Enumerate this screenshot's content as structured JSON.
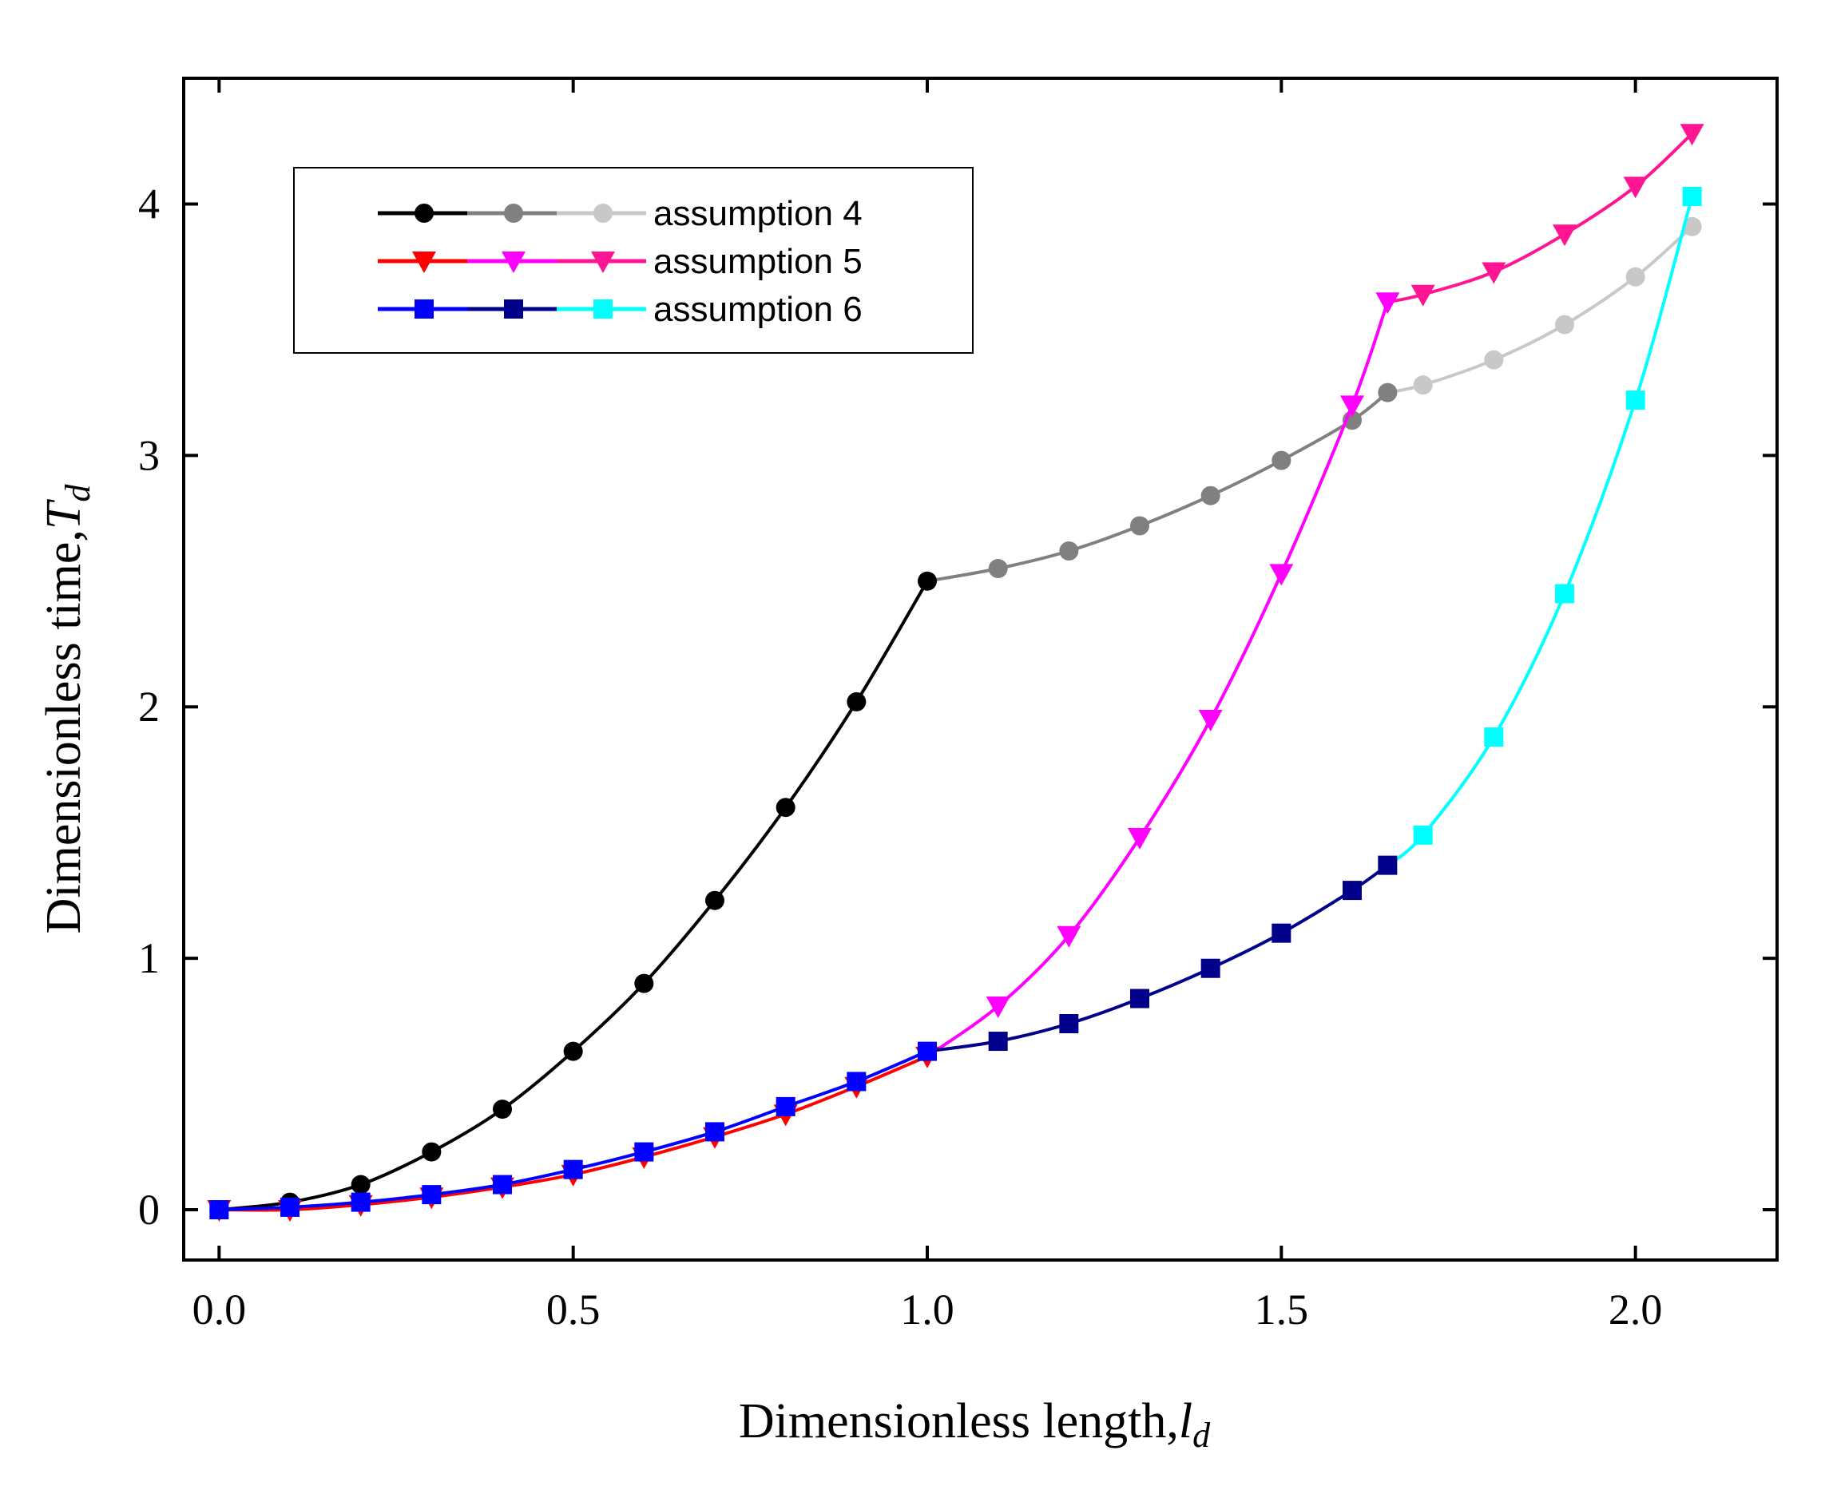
{
  "chart_data": {
    "type": "line",
    "xlabel": "Dimensionless length,",
    "xlabel_var": "l",
    "xlabel_sub": "d",
    "ylabel": "Dimensionless time,",
    "ylabel_var": "T",
    "ylabel_sub": "d",
    "xlim": [
      -0.05,
      2.2
    ],
    "ylim": [
      -0.2,
      4.5
    ],
    "xticks": [
      0.0,
      0.5,
      1.0,
      1.5,
      2.0
    ],
    "xtick_labels": [
      "0.0",
      "0.5",
      "1.0",
      "1.5",
      "2.0"
    ],
    "yticks": [
      0,
      1,
      2,
      3,
      4
    ],
    "ytick_labels": [
      "0",
      "1",
      "2",
      "3",
      "4"
    ],
    "grid": false,
    "legend_position": "top-left",
    "series": [
      {
        "name": "assumption 4",
        "marker": "circle",
        "segment_colors": [
          "#000000",
          "#808080",
          "#c8c8c8"
        ],
        "segments": [
          {
            "color": "#000000",
            "x": [
              0.0,
              0.1,
              0.2,
              0.3,
              0.4,
              0.5,
              0.6,
              0.7,
              0.8,
              0.9,
              1.0
            ],
            "y": [
              0.0,
              0.03,
              0.1,
              0.23,
              0.4,
              0.63,
              0.9,
              1.23,
              1.6,
              2.02,
              2.5
            ]
          },
          {
            "color": "#808080",
            "x": [
              1.0,
              1.1,
              1.2,
              1.3,
              1.4,
              1.5,
              1.6,
              1.65
            ],
            "y": [
              2.5,
              2.55,
              2.62,
              2.72,
              2.84,
              2.98,
              3.14,
              3.25
            ]
          },
          {
            "color": "#c8c8c8",
            "x": [
              1.65,
              1.7,
              1.8,
              1.9,
              2.0,
              2.08
            ],
            "y": [
              3.25,
              3.28,
              3.38,
              3.52,
              3.71,
              3.91
            ]
          }
        ]
      },
      {
        "name": "assumption 5",
        "marker": "triangle-down",
        "segment_colors": [
          "#ff0000",
          "#ff00ff",
          "#ff1493"
        ],
        "segments": [
          {
            "color": "#ff0000",
            "x": [
              0.0,
              0.1,
              0.2,
              0.3,
              0.4,
              0.5,
              0.6,
              0.7,
              0.8,
              0.9,
              1.0
            ],
            "y": [
              0.0,
              0.0,
              0.02,
              0.05,
              0.09,
              0.14,
              0.21,
              0.29,
              0.38,
              0.49,
              0.61
            ]
          },
          {
            "color": "#ff00ff",
            "x": [
              1.0,
              1.1,
              1.2,
              1.3,
              1.4,
              1.5,
              1.6,
              1.65
            ],
            "y": [
              0.61,
              0.81,
              1.09,
              1.48,
              1.95,
              2.53,
              3.2,
              3.61
            ]
          },
          {
            "color": "#ff1493",
            "x": [
              1.65,
              1.7,
              1.8,
              1.9,
              2.0,
              2.08
            ],
            "y": [
              3.61,
              3.64,
              3.73,
              3.88,
              4.07,
              4.28
            ]
          }
        ]
      },
      {
        "name": "assumption 6",
        "marker": "square",
        "segment_colors": [
          "#0000ff",
          "#00008b",
          "#00ffff"
        ],
        "segments": [
          {
            "color": "#0000ff",
            "x": [
              0.0,
              0.1,
              0.2,
              0.3,
              0.4,
              0.5,
              0.6,
              0.7,
              0.8,
              0.9,
              1.0
            ],
            "y": [
              0.0,
              0.01,
              0.03,
              0.06,
              0.1,
              0.16,
              0.23,
              0.31,
              0.41,
              0.51,
              0.63
            ]
          },
          {
            "color": "#00008b",
            "x": [
              1.0,
              1.1,
              1.2,
              1.3,
              1.4,
              1.5,
              1.6,
              1.65
            ],
            "y": [
              0.63,
              0.67,
              0.74,
              0.84,
              0.96,
              1.1,
              1.27,
              1.37
            ]
          },
          {
            "color": "#00ffff",
            "x": [
              1.65,
              1.7,
              1.8,
              1.9,
              2.0,
              2.08
            ],
            "y": [
              1.37,
              1.49,
              1.88,
              2.45,
              3.22,
              4.03
            ]
          }
        ]
      }
    ]
  }
}
